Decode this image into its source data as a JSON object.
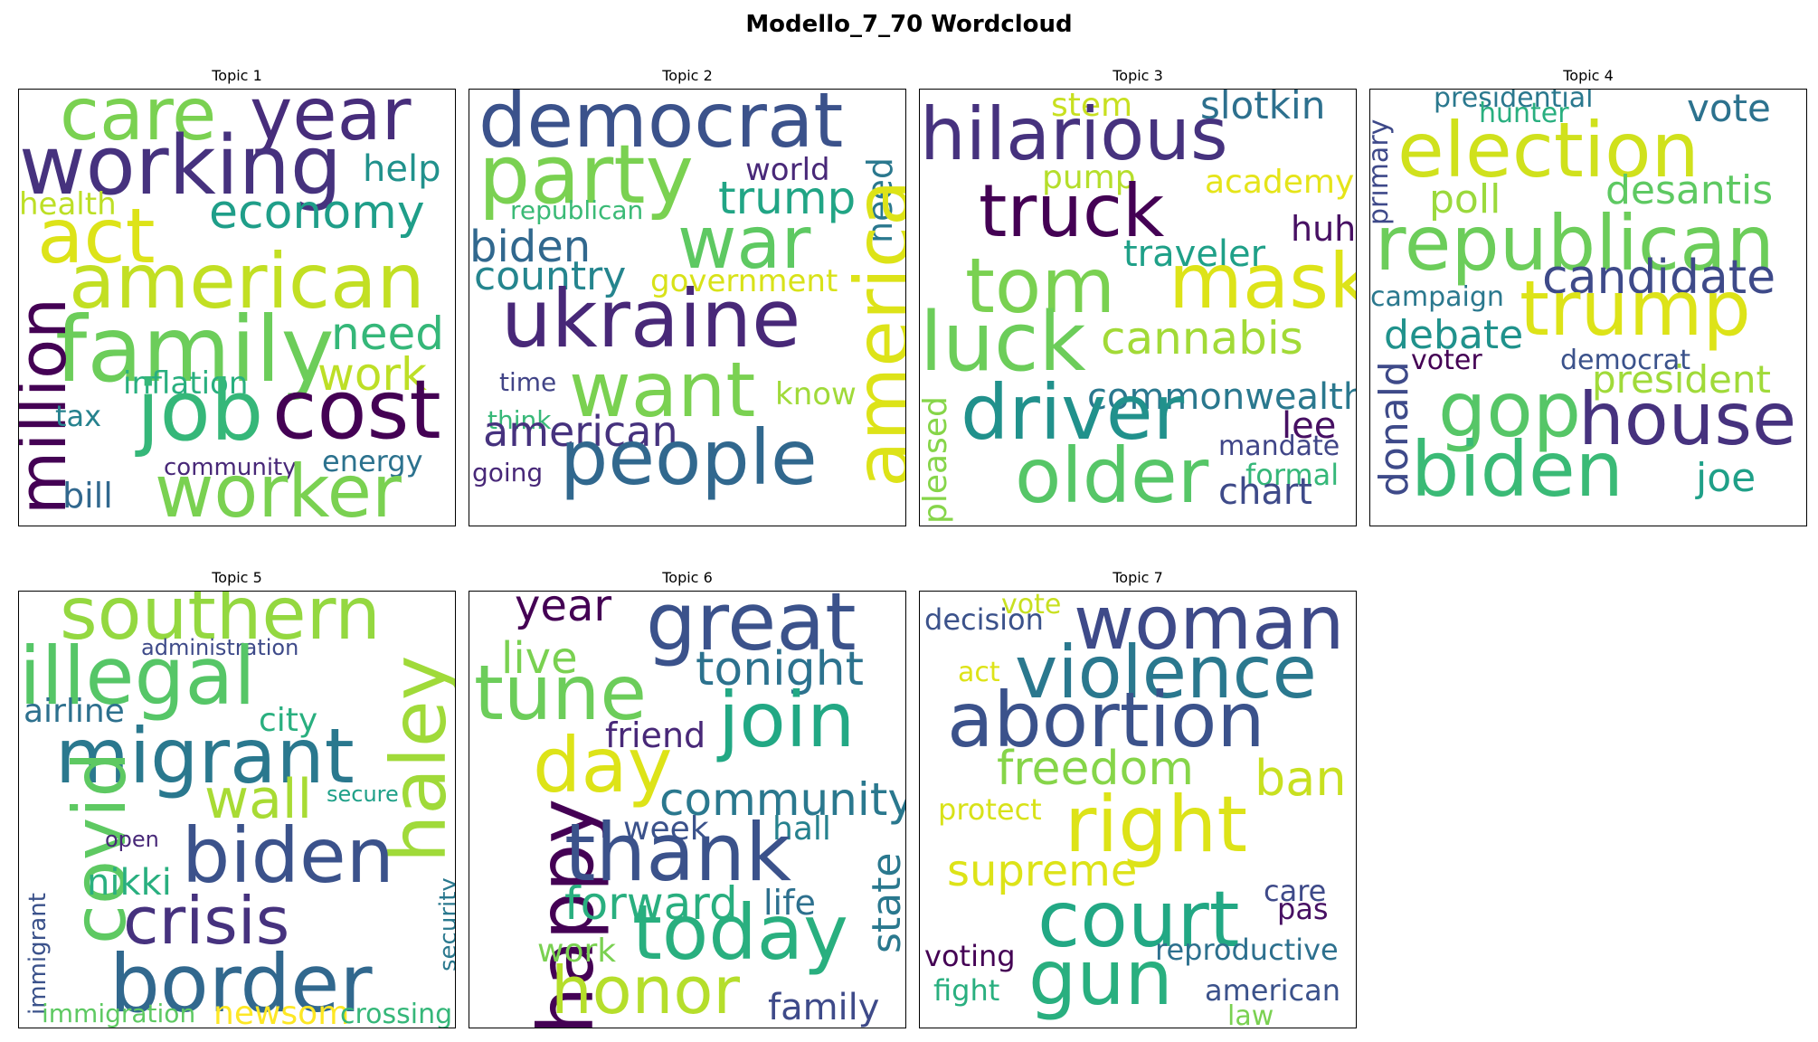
{
  "title": "Modello_7_70 Wordcloud",
  "chart_data": {
    "type": "wordcloud",
    "colormap": "viridis",
    "background": "#ffffff",
    "topics": [
      {
        "title": "Topic 1",
        "words": [
          {
            "text": "care",
            "weight": 0.7,
            "color": "#7ad151"
          },
          {
            "text": "year",
            "weight": 0.7,
            "color": "#472d7b"
          },
          {
            "text": "working",
            "weight": 0.8,
            "color": "#46327e"
          },
          {
            "text": "help",
            "weight": 0.3,
            "color": "#21918c"
          },
          {
            "text": "health",
            "weight": 0.3,
            "color": "#bddf26"
          },
          {
            "text": "economy",
            "weight": 0.45,
            "color": "#1f9e89"
          },
          {
            "text": "act",
            "weight": 0.8,
            "color": "#dde318"
          },
          {
            "text": "american",
            "weight": 0.8,
            "color": "#c2df23"
          },
          {
            "text": "family",
            "weight": 0.9,
            "color": "#6ccd5a"
          },
          {
            "text": "need",
            "weight": 0.45,
            "color": "#35b779"
          },
          {
            "text": "million",
            "weight": 0.55,
            "color": "#440154"
          },
          {
            "text": "inflation",
            "weight": 0.3,
            "color": "#29af7f"
          },
          {
            "text": "work",
            "weight": 0.45,
            "color": "#bddf26"
          },
          {
            "text": "tax",
            "weight": 0.25,
            "color": "#26828e"
          },
          {
            "text": "job",
            "weight": 0.85,
            "color": "#35b779"
          },
          {
            "text": "cost",
            "weight": 0.85,
            "color": "#440154"
          },
          {
            "text": "community",
            "weight": 0.22,
            "color": "#482878"
          },
          {
            "text": "energy",
            "weight": 0.28,
            "color": "#2c728e"
          },
          {
            "text": "bill",
            "weight": 0.32,
            "color": "#31688e"
          },
          {
            "text": "worker",
            "weight": 0.8,
            "color": "#7ad151"
          }
        ]
      },
      {
        "title": "Topic 2",
        "words": [
          {
            "text": "democrat",
            "weight": 0.85,
            "color": "#3b528b"
          },
          {
            "text": "need",
            "weight": 0.35,
            "color": "#2a788e"
          },
          {
            "text": "party",
            "weight": 0.9,
            "color": "#7ad151"
          },
          {
            "text": "world",
            "weight": 0.3,
            "color": "#482878"
          },
          {
            "text": "republican",
            "weight": 0.25,
            "color": "#3aba76"
          },
          {
            "text": "trump",
            "weight": 0.45,
            "color": "#21a585"
          },
          {
            "text": "war",
            "weight": 0.8,
            "color": "#5ec962"
          },
          {
            "text": "america",
            "weight": 0.85,
            "color": "#dde318"
          },
          {
            "text": "biden",
            "weight": 0.45,
            "color": "#31688e"
          },
          {
            "text": "country",
            "weight": 0.4,
            "color": "#25858e"
          },
          {
            "text": "government",
            "weight": 0.3,
            "color": "#d8e219"
          },
          {
            "text": "ukraine",
            "weight": 0.9,
            "color": "#482878"
          },
          {
            "text": "time",
            "weight": 0.25,
            "color": "#414487"
          },
          {
            "text": "want",
            "weight": 0.8,
            "color": "#7ad151"
          },
          {
            "text": "know",
            "weight": 0.3,
            "color": "#a0da39"
          },
          {
            "text": "think",
            "weight": 0.25,
            "color": "#37b878"
          },
          {
            "text": "american",
            "weight": 0.45,
            "color": "#46327e"
          },
          {
            "text": "going",
            "weight": 0.25,
            "color": "#482878"
          },
          {
            "text": "people",
            "weight": 0.85,
            "color": "#31688e"
          }
        ]
      },
      {
        "title": "Topic 3",
        "words": [
          {
            "text": "stem",
            "weight": 0.35,
            "color": "#c8e020"
          },
          {
            "text": "slotkin",
            "weight": 0.4,
            "color": "#2d708e"
          },
          {
            "text": "hilarious",
            "weight": 0.85,
            "color": "#46327e"
          },
          {
            "text": "pump",
            "weight": 0.3,
            "color": "#b5de2b"
          },
          {
            "text": "academy",
            "weight": 0.35,
            "color": "#e5e419"
          },
          {
            "text": "truck",
            "weight": 0.8,
            "color": "#440154"
          },
          {
            "text": "huh",
            "weight": 0.35,
            "color": "#471063"
          },
          {
            "text": "traveler",
            "weight": 0.35,
            "color": "#1fa088"
          },
          {
            "text": "tom",
            "weight": 0.8,
            "color": "#7ad151"
          },
          {
            "text": "mask",
            "weight": 0.8,
            "color": "#dde318"
          },
          {
            "text": "luck",
            "weight": 0.85,
            "color": "#6ccd5a"
          },
          {
            "text": "cannabis",
            "weight": 0.5,
            "color": "#a2da37"
          },
          {
            "text": "commonwealth",
            "weight": 0.4,
            "color": "#2a788e"
          },
          {
            "text": "pleased",
            "weight": 0.4,
            "color": "#86d549"
          },
          {
            "text": "driver",
            "weight": 0.85,
            "color": "#21918c"
          },
          {
            "text": "lee",
            "weight": 0.4,
            "color": "#471063"
          },
          {
            "text": "mandate",
            "weight": 0.3,
            "color": "#404688"
          },
          {
            "text": "older",
            "weight": 0.8,
            "color": "#56c667"
          },
          {
            "text": "formal",
            "weight": 0.3,
            "color": "#35b779"
          },
          {
            "text": "chart",
            "weight": 0.4,
            "color": "#3e4a89"
          }
        ]
      },
      {
        "title": "Topic 4",
        "words": [
          {
            "text": "presidential",
            "weight": 0.3,
            "color": "#2a788e"
          },
          {
            "text": "vote",
            "weight": 0.4,
            "color": "#2c728e"
          },
          {
            "text": "hunter",
            "weight": 0.25,
            "color": "#29af7f"
          },
          {
            "text": "primary",
            "weight": 0.25,
            "color": "#3e4989"
          },
          {
            "text": "election",
            "weight": 0.8,
            "color": "#d0e11c"
          },
          {
            "text": "poll",
            "weight": 0.4,
            "color": "#9bd93c"
          },
          {
            "text": "desantis",
            "weight": 0.4,
            "color": "#5ec962"
          },
          {
            "text": "republican",
            "weight": 0.85,
            "color": "#6ccd5a"
          },
          {
            "text": "campaign",
            "weight": 0.3,
            "color": "#2a788e"
          },
          {
            "text": "candidate",
            "weight": 0.5,
            "color": "#3e4a89"
          },
          {
            "text": "trump",
            "weight": 0.8,
            "color": "#dde318"
          },
          {
            "text": "debate",
            "weight": 0.4,
            "color": "#20928c"
          },
          {
            "text": "voter",
            "weight": 0.3,
            "color": "#440154"
          },
          {
            "text": "democrat",
            "weight": 0.3,
            "color": "#3b528b"
          },
          {
            "text": "president",
            "weight": 0.4,
            "color": "#a0da39"
          },
          {
            "text": "donald",
            "weight": 0.4,
            "color": "#3e4a89"
          },
          {
            "text": "gop",
            "weight": 0.85,
            "color": "#56c667"
          },
          {
            "text": "house",
            "weight": 0.8,
            "color": "#46327e"
          },
          {
            "text": "biden",
            "weight": 0.85,
            "color": "#3aba76"
          },
          {
            "text": "joe",
            "weight": 0.4,
            "color": "#1fa088"
          }
        ]
      },
      {
        "title": "Topic 5",
        "words": [
          {
            "text": "southern",
            "weight": 0.8,
            "color": "#94d840"
          },
          {
            "text": "haley",
            "weight": 0.85,
            "color": "#a0da39"
          },
          {
            "text": "administration",
            "weight": 0.25,
            "color": "#3e4a89"
          },
          {
            "text": "illegal",
            "weight": 0.85,
            "color": "#56c667"
          },
          {
            "text": "airline",
            "weight": 0.35,
            "color": "#2d708e"
          },
          {
            "text": "city",
            "weight": 0.35,
            "color": "#29af7f"
          },
          {
            "text": "migrant",
            "weight": 0.85,
            "color": "#2a788e"
          },
          {
            "text": "wall",
            "weight": 0.55,
            "color": "#a8db34"
          },
          {
            "text": "secure",
            "weight": 0.22,
            "color": "#1fa088"
          },
          {
            "text": "covid",
            "weight": 0.75,
            "color": "#5ec962"
          },
          {
            "text": "open",
            "weight": 0.22,
            "color": "#482878"
          },
          {
            "text": "biden",
            "weight": 0.85,
            "color": "#3b528b"
          },
          {
            "text": "nikki",
            "weight": 0.4,
            "color": "#29af7f"
          },
          {
            "text": "security",
            "weight": 0.25,
            "color": "#2a788e"
          },
          {
            "text": "crisis",
            "weight": 0.75,
            "color": "#46327e"
          },
          {
            "text": "immigrant",
            "weight": 0.25,
            "color": "#3b528b"
          },
          {
            "text": "border",
            "weight": 0.85,
            "color": "#31688e"
          },
          {
            "text": "immigration",
            "weight": 0.3,
            "color": "#5ec962"
          },
          {
            "text": "newsom",
            "weight": 0.35,
            "color": "#fde725"
          },
          {
            "text": "crossing",
            "weight": 0.3,
            "color": "#35b779"
          }
        ]
      },
      {
        "title": "Topic 6",
        "words": [
          {
            "text": "year",
            "weight": 0.45,
            "color": "#440154"
          },
          {
            "text": "great",
            "weight": 0.85,
            "color": "#3b528b"
          },
          {
            "text": "live",
            "weight": 0.45,
            "color": "#7ad151"
          },
          {
            "text": "tonight",
            "weight": 0.5,
            "color": "#2c728e"
          },
          {
            "text": "tune",
            "weight": 0.85,
            "color": "#6ccd5a"
          },
          {
            "text": "friend",
            "weight": 0.35,
            "color": "#482878"
          },
          {
            "text": "join",
            "weight": 0.85,
            "color": "#22a884"
          },
          {
            "text": "day",
            "weight": 0.85,
            "color": "#dde318"
          },
          {
            "text": "community",
            "weight": 0.5,
            "color": "#2a788e"
          },
          {
            "text": "happy",
            "weight": 0.85,
            "color": "#440154"
          },
          {
            "text": "week",
            "weight": 0.35,
            "color": "#3b528b"
          },
          {
            "text": "hall",
            "weight": 0.35,
            "color": "#26828e"
          },
          {
            "text": "thank",
            "weight": 0.85,
            "color": "#3b528b"
          },
          {
            "text": "state",
            "weight": 0.45,
            "color": "#2a788e"
          },
          {
            "text": "forward",
            "weight": 0.5,
            "color": "#29af7f"
          },
          {
            "text": "life",
            "weight": 0.4,
            "color": "#2d708e"
          },
          {
            "text": "work",
            "weight": 0.35,
            "color": "#7ad151"
          },
          {
            "text": "today",
            "weight": 0.85,
            "color": "#29af7f"
          },
          {
            "text": "honor",
            "weight": 0.8,
            "color": "#b5de2b"
          },
          {
            "text": "family",
            "weight": 0.4,
            "color": "#3e4a89"
          }
        ]
      },
      {
        "title": "Topic 7",
        "words": [
          {
            "text": "vote",
            "weight": 0.28,
            "color": "#c8e020"
          },
          {
            "text": "decision",
            "weight": 0.3,
            "color": "#3b528b"
          },
          {
            "text": "woman",
            "weight": 0.85,
            "color": "#3e4a89"
          },
          {
            "text": "act",
            "weight": 0.3,
            "color": "#dde318"
          },
          {
            "text": "violence",
            "weight": 0.8,
            "color": "#2a788e"
          },
          {
            "text": "abortion",
            "weight": 0.85,
            "color": "#3b528b"
          },
          {
            "text": "freedom",
            "weight": 0.55,
            "color": "#86d549"
          },
          {
            "text": "ban",
            "weight": 0.5,
            "color": "#c8e020"
          },
          {
            "text": "protect",
            "weight": 0.3,
            "color": "#d8e219"
          },
          {
            "text": "right",
            "weight": 0.85,
            "color": "#dde318"
          },
          {
            "text": "supreme",
            "weight": 0.5,
            "color": "#dde318"
          },
          {
            "text": "care",
            "weight": 0.3,
            "color": "#3e4a89"
          },
          {
            "text": "pas",
            "weight": 0.3,
            "color": "#471063"
          },
          {
            "text": "court",
            "weight": 0.85,
            "color": "#22a884"
          },
          {
            "text": "voting",
            "weight": 0.3,
            "color": "#440154"
          },
          {
            "text": "reproductive",
            "weight": 0.3,
            "color": "#2d708e"
          },
          {
            "text": "fight",
            "weight": 0.3,
            "color": "#29af7f"
          },
          {
            "text": "gun",
            "weight": 0.85,
            "color": "#29af7f"
          },
          {
            "text": "american",
            "weight": 0.32,
            "color": "#3b528b"
          },
          {
            "text": "law",
            "weight": 0.3,
            "color": "#7ad151"
          }
        ]
      }
    ]
  }
}
